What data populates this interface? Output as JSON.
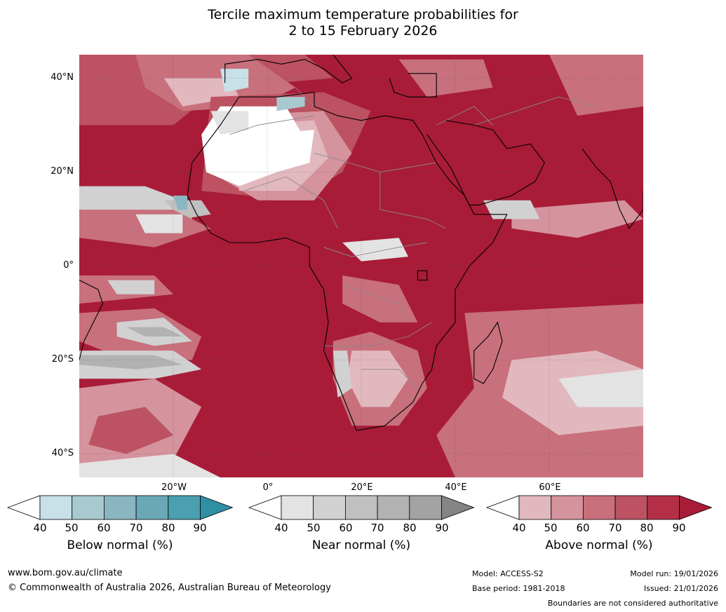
{
  "title": {
    "line1": "Tercile maximum temperature probabilities for",
    "line2": "2 to 15 February 2026"
  },
  "map": {
    "lat_labels": [
      "40°N",
      "20°N",
      "0°",
      "20°S",
      "40°S"
    ],
    "lon_labels": [
      "20°W",
      "0°",
      "20°E",
      "40°E",
      "60°E"
    ],
    "colors": {
      "above": [
        "#e2b8bf",
        "#d4939d",
        "#c8707c",
        "#bc5262",
        "#b42f46",
        "#a81c38"
      ],
      "near": [
        "#e3e3e3",
        "#d1d1d1",
        "#c0c0c0",
        "#b2b2b2",
        "#a3a3a3",
        "#858585"
      ],
      "below": [
        "#c8e0e8",
        "#a9c9d1",
        "#8ab6c1",
        "#6aa8b6",
        "#4a9fb0",
        "#2f8fa5"
      ],
      "coast": "#000000",
      "border": "#8a8a8a"
    }
  },
  "legend": {
    "below": {
      "title": "Below normal (%)",
      "ticks": [
        "40",
        "50",
        "60",
        "70",
        "80",
        "90"
      ]
    },
    "near": {
      "title": "Near normal (%)",
      "ticks": [
        "40",
        "50",
        "60",
        "70",
        "80",
        "90"
      ]
    },
    "above": {
      "title": "Above normal (%)",
      "ticks": [
        "40",
        "50",
        "60",
        "70",
        "80",
        "90"
      ]
    }
  },
  "footer": {
    "url": "www.bom.gov.au/climate",
    "copyright": "© Commonwealth of Australia 2026, Australian Bureau of Meteorology",
    "model": "Model: ACCESS-S2",
    "base_period": "Base period: 1981-2018",
    "model_run": "Model run: 19/01/2026",
    "issued": "Issued: 21/01/2026",
    "boundaries_note": "Boundaries are not considered authoritative"
  }
}
